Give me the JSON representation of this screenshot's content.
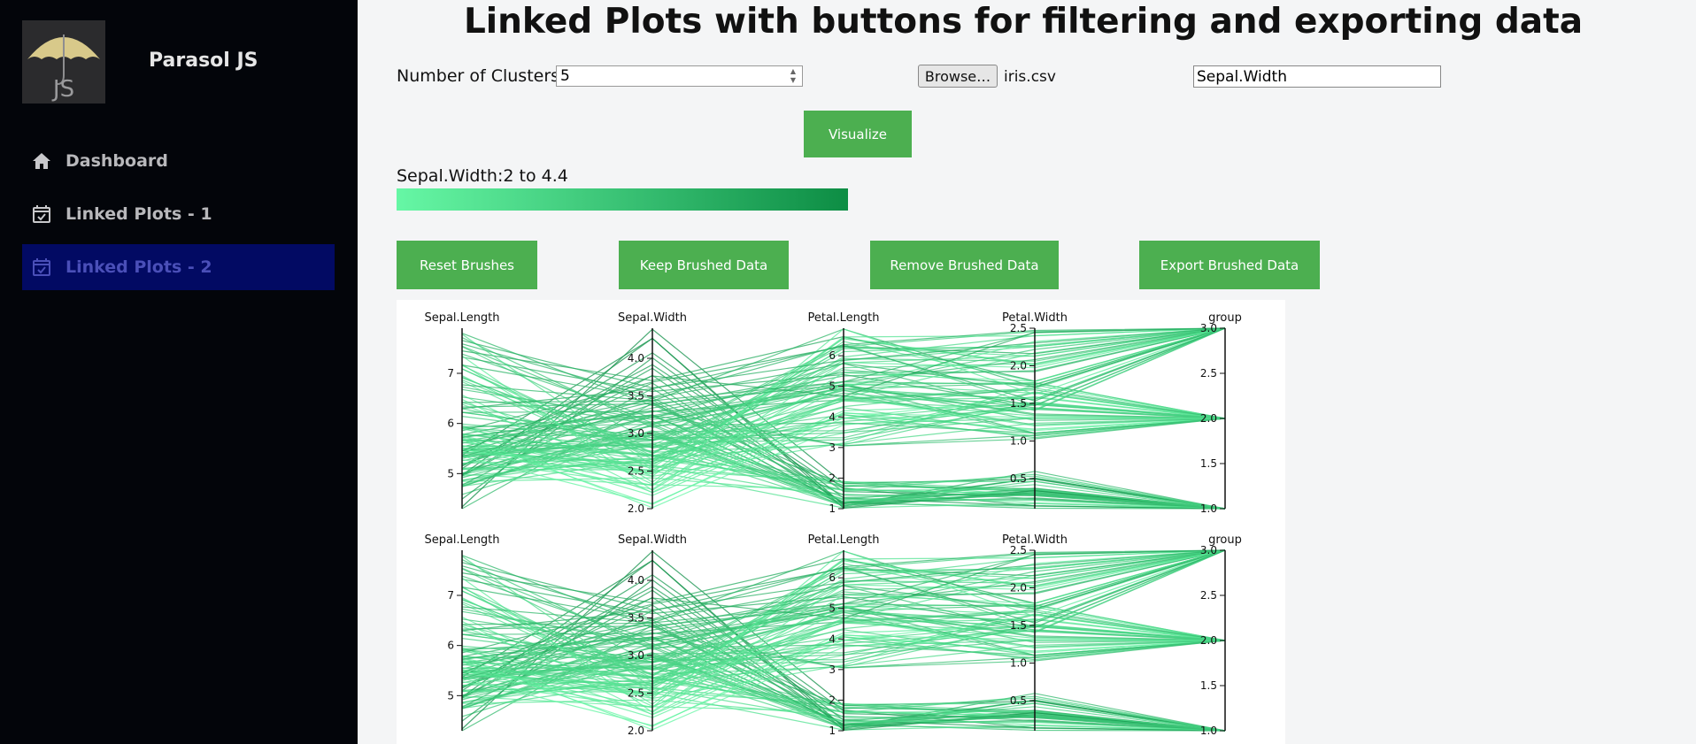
{
  "app": {
    "brand": "Parasol JS",
    "logo_text": "JS"
  },
  "sidebar": {
    "items": [
      {
        "label": "Dashboard",
        "icon": "home-icon",
        "active": false
      },
      {
        "label": "Linked Plots - 1",
        "icon": "calendar-check-icon",
        "active": false
      },
      {
        "label": "Linked Plots - 2",
        "icon": "calendar-check-icon",
        "active": true
      }
    ]
  },
  "header": {
    "title": "Linked Plots with buttons for filtering and exporting data"
  },
  "controls": {
    "clusters_label": "Number of Clusters:",
    "clusters_value": "5",
    "browse_label": "Browse…",
    "file_name": "iris.csv",
    "attribute_value": "Sepal.Width",
    "visualize_label": "Visualize",
    "range_label": "Sepal.Width:2 to 4.4",
    "color_scale": [
      "#66f7a5",
      "#0d8d44"
    ]
  },
  "actions": {
    "reset_label": "Reset Brushes",
    "keep_label": "Keep Brushed Data",
    "remove_label": "Remove Brushed Data",
    "export_label": "Export Brushed Data"
  },
  "chart_data": [
    {
      "type": "parallel-coordinates",
      "dimensions": [
        {
          "name": "Sepal.Length",
          "range": [
            4.3,
            7.9
          ],
          "ticks": [
            5,
            6,
            7
          ]
        },
        {
          "name": "Sepal.Width",
          "range": [
            2.0,
            4.4
          ],
          "ticks": [
            2.0,
            2.5,
            3.0,
            3.5,
            4.0
          ]
        },
        {
          "name": "Petal.Length",
          "range": [
            1,
            6.9
          ],
          "ticks": [
            1,
            2,
            3,
            4,
            5,
            6
          ]
        },
        {
          "name": "Petal.Width",
          "range": [
            0.1,
            2.5
          ],
          "ticks": [
            0.5,
            1.0,
            1.5,
            2.0,
            2.5
          ]
        },
        {
          "name": "group",
          "range": [
            1,
            3
          ],
          "ticks": [
            1.0,
            1.5,
            2.0,
            2.5,
            3.0
          ]
        }
      ],
      "color_by": "Sepal.Width",
      "color_range": [
        "#66f7a5",
        "#0d8d44"
      ]
    },
    {
      "type": "parallel-coordinates",
      "dimensions": [
        {
          "name": "Sepal.Length",
          "range": [
            4.3,
            7.9
          ],
          "ticks": [
            5,
            6,
            7
          ]
        },
        {
          "name": "Sepal.Width",
          "range": [
            2.0,
            4.4
          ],
          "ticks": [
            2.0,
            2.5,
            3.0,
            3.5,
            4.0
          ]
        },
        {
          "name": "Petal.Length",
          "range": [
            1,
            6.9
          ],
          "ticks": [
            1,
            2,
            3,
            4,
            5,
            6
          ]
        },
        {
          "name": "Petal.Width",
          "range": [
            0.1,
            2.5
          ],
          "ticks": [
            0.5,
            1.0,
            1.5,
            2.0,
            2.5
          ]
        },
        {
          "name": "group",
          "range": [
            1,
            3
          ],
          "ticks": [
            1.0,
            1.5,
            2.0,
            2.5,
            3.0
          ]
        }
      ],
      "color_by": "Sepal.Width",
      "color_range": [
        "#66f7a5",
        "#0d8d44"
      ]
    }
  ]
}
